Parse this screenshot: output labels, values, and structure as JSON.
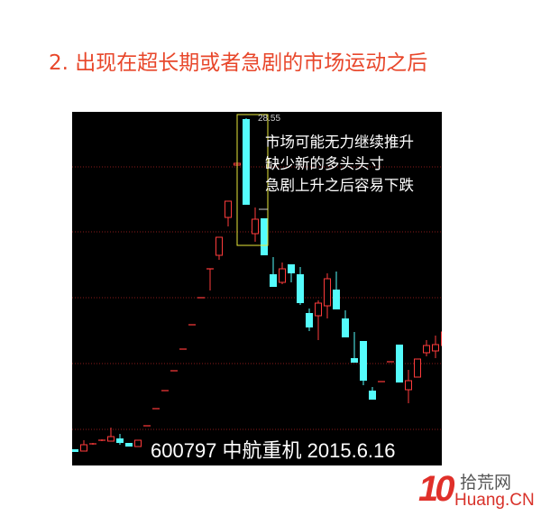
{
  "title": "2. 出现在超长期或者急剧的市场运动之后",
  "logo": {
    "mark": "10",
    "name_cn": "拾荒网",
    "name_en": "Huang.CN"
  },
  "colors": {
    "title": "#e8472b",
    "up": "#ff3b3b",
    "down": "#54fcfc",
    "grid": "#8a1a1a",
    "highlight_box": "#e8e83a",
    "background": "#000000"
  },
  "chart_data": {
    "type": "candlestick",
    "stock_label": "600797 中航重机 2015.6.16",
    "high_label": "28.55",
    "annotations": [
      "市场可能无力继续推升",
      "缺少新的多头头寸",
      "急剧上升之后容易下跌"
    ],
    "ylim": [
      9.3,
      28.9
    ],
    "grid": true,
    "highlighted_candles": [
      19,
      20
    ],
    "ohlc": [
      [
        10.2,
        10.2,
        10.05,
        10.05
      ],
      [
        10.1,
        10.7,
        10.1,
        10.45
      ],
      [
        10.5,
        10.55,
        10.45,
        10.5
      ],
      [
        10.7,
        10.75,
        10.65,
        10.7
      ],
      [
        10.65,
        11.4,
        10.65,
        10.9
      ],
      [
        10.8,
        11.05,
        10.45,
        10.55
      ],
      [
        10.55,
        10.55,
        10.35,
        10.35
      ],
      [
        10.35,
        10.7,
        10.35,
        10.7
      ],
      [
        11.5,
        11.5,
        11.5,
        11.5
      ],
      [
        12.45,
        12.45,
        12.45,
        12.45
      ],
      [
        13.45,
        13.45,
        13.45,
        13.45
      ],
      [
        14.55,
        14.55,
        14.55,
        14.55
      ],
      [
        15.75,
        15.75,
        15.75,
        15.75
      ],
      [
        17.1,
        17.1,
        17.1,
        17.1
      ],
      [
        18.6,
        18.6,
        18.6,
        18.6
      ],
      [
        20.2,
        20.2,
        19.0,
        20.2
      ],
      [
        20.95,
        21.95,
        20.7,
        21.95
      ],
      [
        23.05,
        23.95,
        22.55,
        23.95
      ],
      [
        25.95,
        26.05,
        25.35,
        26.05
      ],
      [
        28.5,
        28.55,
        23.75,
        23.75
      ],
      [
        22.15,
        23.6,
        21.7,
        22.95
      ],
      [
        23.0,
        23.0,
        20.95,
        20.95
      ],
      [
        19.9,
        20.85,
        19.2,
        19.2
      ],
      [
        19.45,
        20.55,
        19.35,
        20.2
      ],
      [
        20.45,
        20.45,
        19.45,
        19.95
      ],
      [
        19.9,
        20.3,
        18.2,
        18.3
      ],
      [
        17.75,
        18.0,
        16.75,
        16.95
      ],
      [
        17.6,
        18.45,
        16.25,
        18.3
      ],
      [
        18.15,
        19.95,
        17.45,
        19.65
      ],
      [
        19.05,
        20.05,
        17.95,
        17.95
      ],
      [
        17.45,
        17.9,
        16.4,
        16.4
      ],
      [
        15.25,
        16.7,
        15.0,
        15.0
      ],
      [
        16.2,
        16.2,
        13.75,
        14.0
      ],
      [
        13.45,
        13.65,
        12.95,
        12.95
      ],
      [
        13.95,
        13.95,
        13.95,
        13.95
      ],
      [
        15.05,
        15.05,
        15.05,
        15.05
      ],
      [
        16.0,
        16.0,
        13.9,
        13.9
      ],
      [
        13.5,
        14.6,
        12.75,
        14.0
      ],
      [
        14.2,
        15.2,
        14.2,
        15.2
      ],
      [
        15.55,
        16.25,
        15.35,
        15.95
      ],
      [
        15.65,
        16.5,
        15.25,
        16.0
      ],
      [
        15.95,
        17.2,
        15.95,
        16.7
      ]
    ]
  }
}
